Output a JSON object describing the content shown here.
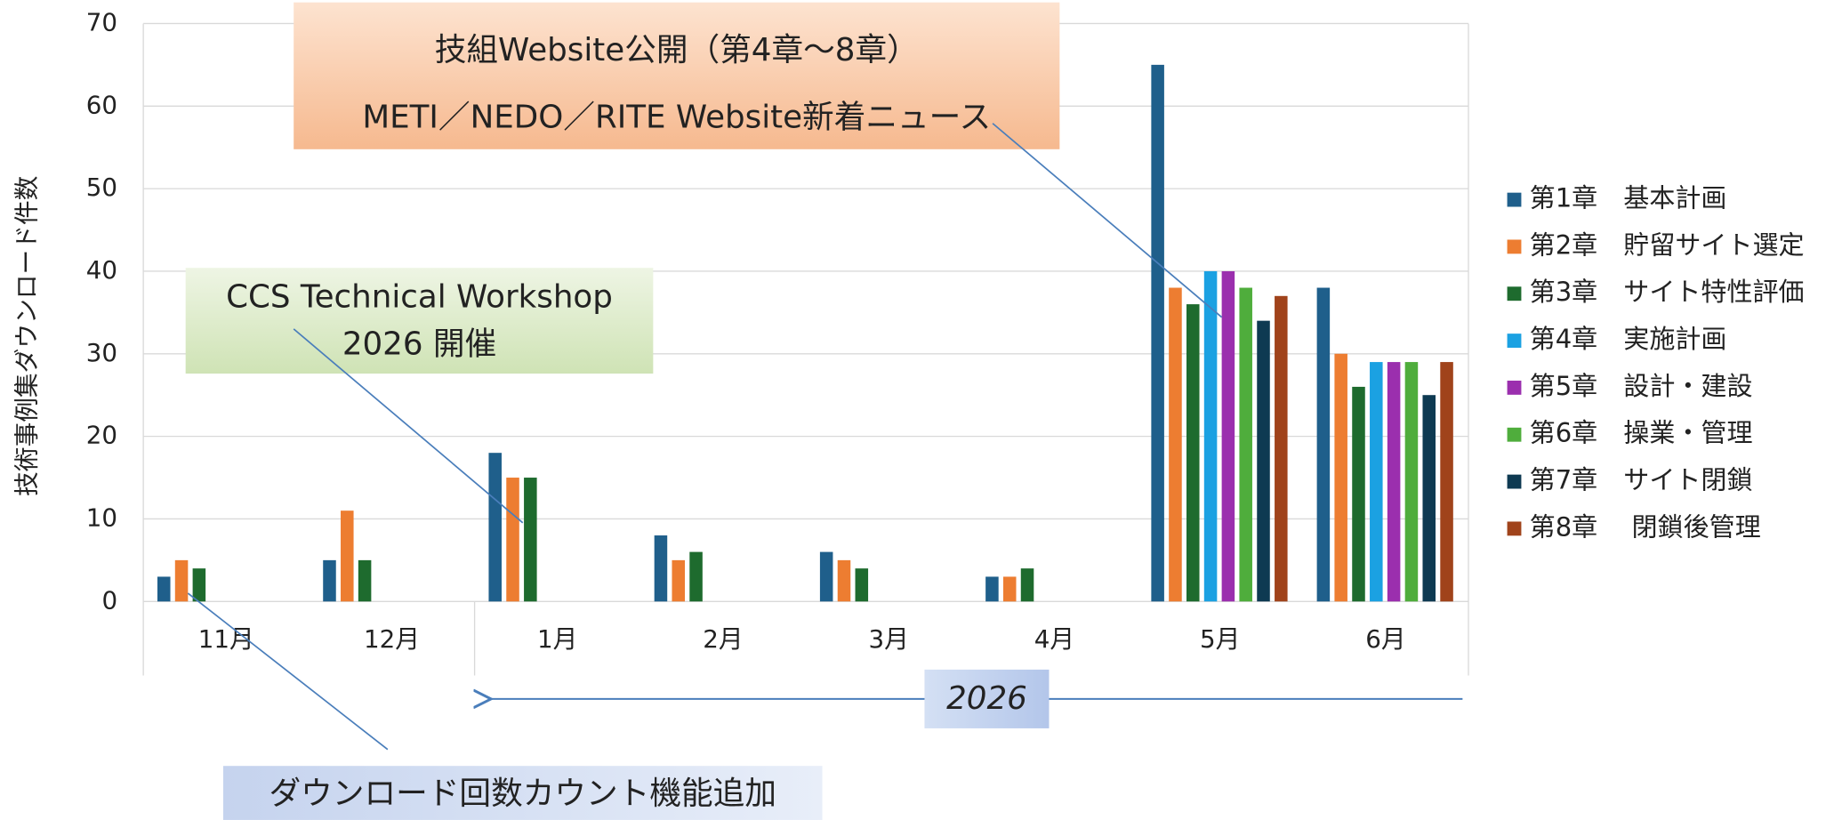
{
  "chart_data": {
    "type": "bar",
    "y_label": "技術事例集ダウンロード件数",
    "categories": [
      "11月",
      "12月",
      "1月",
      "2月",
      "3月",
      "4月",
      "5月",
      "6月"
    ],
    "series": [
      {
        "name": "第1章　基本計画",
        "color": "#1f5f8b",
        "values": [
          3,
          5,
          18,
          8,
          6,
          3,
          65,
          38
        ]
      },
      {
        "name": "第2章　貯留サイト選定",
        "color": "#ed7d31",
        "values": [
          5,
          11,
          15,
          5,
          5,
          3,
          38,
          30
        ]
      },
      {
        "name": "第3章　サイト特性評価",
        "color": "#1e6b2e",
        "values": [
          4,
          5,
          15,
          6,
          4,
          4,
          36,
          26
        ]
      },
      {
        "name": "第4章　実施計画",
        "color": "#1ba1e2",
        "values": [
          null,
          null,
          null,
          null,
          null,
          null,
          40,
          29
        ]
      },
      {
        "name": "第5章　設計・建設",
        "color": "#9b2fae",
        "values": [
          null,
          null,
          null,
          null,
          null,
          null,
          40,
          29
        ]
      },
      {
        "name": "第6章　操業・管理",
        "color": "#4fad3c",
        "values": [
          null,
          null,
          null,
          null,
          null,
          null,
          38,
          29
        ]
      },
      {
        "name": "第7章　サイト閉鎖",
        "color": "#0e3a52",
        "values": [
          null,
          null,
          null,
          null,
          null,
          null,
          34,
          25
        ]
      },
      {
        "name": "第8章　 閉鎖後管理",
        "color": "#a0431b",
        "values": [
          null,
          null,
          null,
          null,
          null,
          null,
          37,
          29
        ]
      }
    ],
    "ylim": [
      0,
      70
    ],
    "yticks": [
      0,
      10,
      20,
      30,
      40,
      50,
      60,
      70
    ],
    "grid": true,
    "annotations": [
      {
        "lines": [
          "技組Website公開（第4章～8章）",
          "METI／NEDO／RITE Website新着ニュース"
        ]
      },
      {
        "lines": [
          "CCS Technical Workshop",
          "2026 開催"
        ]
      },
      {
        "lines": [
          "ダウンロード回数カウント機能追加"
        ]
      },
      {
        "lines": [
          "2026"
        ]
      }
    ]
  }
}
